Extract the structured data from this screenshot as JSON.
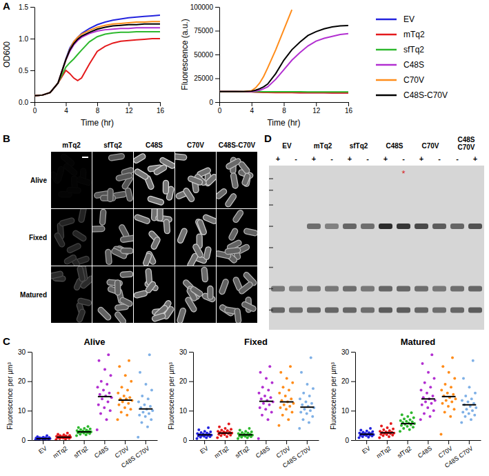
{
  "chart_data": [
    {
      "type": "line",
      "x_label": "Time (hr)",
      "y_label": "OD600",
      "x": [
        0,
        1,
        2,
        3,
        4,
        4.5,
        5,
        5.5,
        6,
        7,
        8,
        9,
        10,
        11,
        12,
        13,
        14,
        15,
        16
      ],
      "xlim": [
        0,
        16
      ],
      "xticks": [
        0,
        4,
        8,
        12,
        16
      ],
      "ylim": [
        0,
        1.5
      ],
      "yticks": [
        {
          "value": 0,
          "label": "0.0"
        },
        {
          "value": 0.5,
          "label": "0.5"
        },
        {
          "value": 1,
          "label": "1.0"
        },
        {
          "value": 1.5,
          "label": "1.5"
        }
      ],
      "series": [
        {
          "name": "EV",
          "color": "#2323de",
          "values": [
            0.1,
            0.11,
            0.15,
            0.3,
            0.68,
            0.85,
            0.95,
            1.02,
            1.08,
            1.16,
            1.22,
            1.26,
            1.29,
            1.31,
            1.33,
            1.34,
            1.35,
            1.36,
            1.37
          ]
        },
        {
          "name": "mTq2",
          "color": "#e41a1c",
          "values": [
            0.1,
            0.11,
            0.15,
            0.3,
            0.5,
            0.45,
            0.38,
            0.34,
            0.38,
            0.6,
            0.8,
            0.88,
            0.93,
            0.96,
            0.97,
            0.98,
            0.99,
            1.0,
            1.0
          ]
        },
        {
          "name": "sfTq2",
          "color": "#2db82d",
          "values": [
            0.1,
            0.11,
            0.15,
            0.3,
            0.55,
            0.62,
            0.68,
            0.75,
            0.82,
            0.95,
            1.03,
            1.07,
            1.09,
            1.1,
            1.1,
            1.11,
            1.11,
            1.11,
            1.11
          ]
        },
        {
          "name": "C48S",
          "color": "#b22fd1",
          "values": [
            0.1,
            0.11,
            0.15,
            0.3,
            0.66,
            0.8,
            0.9,
            0.97,
            1.02,
            1.08,
            1.12,
            1.14,
            1.15,
            1.16,
            1.16,
            1.17,
            1.17,
            1.17,
            1.17
          ]
        },
        {
          "name": "C70V",
          "color": "#ff8c1a",
          "values": [
            0.1,
            0.11,
            0.15,
            0.3,
            0.67,
            0.83,
            0.95,
            1.02,
            1.07,
            1.13,
            1.18,
            1.21,
            1.23,
            1.24,
            1.25,
            1.26,
            1.26,
            1.27,
            1.27
          ]
        },
        {
          "name": "C48S-C70V",
          "color": "#000000",
          "values": [
            0.1,
            0.11,
            0.15,
            0.3,
            0.67,
            0.82,
            0.92,
            0.99,
            1.04,
            1.1,
            1.15,
            1.18,
            1.2,
            1.21,
            1.22,
            1.22,
            1.23,
            1.23,
            1.23
          ]
        }
      ]
    },
    {
      "type": "line",
      "x_label": "Time (hr)",
      "y_label": "Fluorescence (a.u.)",
      "legend": "right",
      "x": [
        0,
        1,
        2,
        3,
        4,
        4.5,
        5,
        5.5,
        6,
        7,
        8,
        9,
        10,
        11,
        12,
        13,
        14,
        15,
        16
      ],
      "xlim": [
        0,
        16
      ],
      "xticks": [
        0,
        4,
        8,
        12,
        16
      ],
      "ylim": [
        0,
        100000
      ],
      "yticks": [
        0,
        25000,
        50000,
        75000,
        100000
      ],
      "series": [
        {
          "name": "EV",
          "color": "#2323de",
          "values": [
            11000,
            11000,
            11000,
            10900,
            10800,
            10700,
            10600,
            10500,
            10400,
            10300,
            10200,
            10100,
            10000,
            10000,
            9900,
            9900,
            9800,
            9800,
            9800
          ]
        },
        {
          "name": "mTq2",
          "color": "#e41a1c",
          "values": [
            11000,
            11000,
            11000,
            10900,
            10700,
            10500,
            10300,
            10200,
            10100,
            10000,
            9900,
            9900,
            9800,
            9800,
            9700,
            9700,
            9600,
            9600,
            9600
          ]
        },
        {
          "name": "sfTq2",
          "color": "#2db82d",
          "values": [
            11000,
            11000,
            11000,
            11000,
            11000,
            11000,
            11000,
            10900,
            10900,
            10900,
            10800,
            10800,
            10800,
            10700,
            10700,
            10700,
            10600,
            10600,
            10600
          ]
        },
        {
          "name": "C48S",
          "color": "#b22fd1",
          "values": [
            11000,
            11000,
            11000,
            11000,
            11000,
            11500,
            12500,
            14000,
            16000,
            24000,
            34000,
            44000,
            52000,
            59000,
            64000,
            67000,
            69000,
            71000,
            72000
          ]
        },
        {
          "name": "C70V",
          "color": "#ff8c1a",
          "values": [
            11000,
            11000,
            11000,
            11000,
            12000,
            15000,
            20000,
            27000,
            36000,
            55000,
            76000,
            97000,
            null,
            null,
            null,
            null,
            null,
            null,
            null
          ]
        },
        {
          "name": "C48S-C70V",
          "color": "#000000",
          "values": [
            11000,
            11000,
            11000,
            11000,
            11500,
            12500,
            14000,
            16000,
            19000,
            30000,
            44000,
            55000,
            63000,
            70000,
            74000,
            77000,
            79000,
            80000,
            80500
          ]
        }
      ]
    },
    {
      "type": "strip",
      "title": "Alive",
      "y_label": "Fluorescence per µm³",
      "categories": [
        "EV",
        "mTq2",
        "sfTq2",
        "C48S",
        "C70V",
        "C48S C70V"
      ],
      "colors": [
        "#2323de",
        "#e41a1c",
        "#2db82d",
        "#b22fd1",
        "#ff8c1a",
        "#7fb0e6"
      ],
      "ylim": [
        0,
        30
      ],
      "yticks": [
        0,
        10,
        20,
        30
      ],
      "values": [
        [
          0.1,
          0.2,
          0.3,
          0.3,
          0.4,
          0.4,
          0.5,
          0.5,
          0.5,
          0.6,
          0.6,
          0.6,
          0.7,
          0.7,
          0.8,
          0.8,
          0.9,
          1.0,
          1.2,
          1.5
        ],
        [
          0.2,
          0.4,
          0.5,
          0.6,
          0.7,
          0.8,
          0.8,
          0.9,
          1.0,
          1.0,
          1.1,
          1.1,
          1.2,
          1.3,
          1.4,
          1.5,
          1.6,
          1.8,
          2.0,
          2.4
        ],
        [
          1.5,
          1.8,
          2.0,
          2.2,
          2.4,
          2.5,
          2.6,
          2.7,
          2.8,
          2.8,
          2.9,
          3.0,
          3.1,
          3.2,
          3.4,
          3.6,
          3.8,
          4.0,
          4.3,
          4.6
        ],
        [
          3.5,
          7,
          9,
          10,
          11,
          12,
          13,
          14,
          14.5,
          15,
          15.5,
          16,
          17,
          18,
          19,
          20,
          22,
          24,
          27,
          29
        ],
        [
          7,
          8.5,
          9.5,
          10.5,
          11,
          12,
          12.5,
          13,
          13.5,
          14,
          14,
          14.5,
          15,
          16,
          17,
          18,
          20,
          22,
          25,
          27
        ],
        [
          1,
          4.5,
          6,
          7,
          8,
          8.5,
          9,
          9.5,
          10,
          10.5,
          11,
          11.5,
          12,
          13,
          14,
          15,
          17,
          19,
          23,
          29
        ]
      ],
      "means": [
        0.5,
        1.0,
        2.8,
        14.8,
        13.6,
        10.6
      ]
    },
    {
      "type": "strip",
      "title": "Fixed",
      "y_label": "Fluorescence per µm³",
      "categories": [
        "EV",
        "mTq2",
        "sfTq2",
        "C48S",
        "C70V",
        "C48S C70V"
      ],
      "colors": [
        "#2323de",
        "#e41a1c",
        "#2db82d",
        "#b22fd1",
        "#ff8c1a",
        "#7fb0e6"
      ],
      "ylim": [
        0,
        30
      ],
      "yticks": [
        0,
        10,
        20,
        30
      ],
      "values": [
        [
          0.5,
          0.8,
          1.0,
          1.2,
          1.3,
          1.4,
          1.5,
          1.6,
          1.7,
          1.8,
          1.9,
          2.0,
          2.1,
          2.2,
          2.4,
          2.6,
          2.8,
          3.0,
          3.5,
          4.2
        ],
        [
          0.8,
          1.2,
          1.5,
          1.7,
          1.9,
          2.0,
          2.2,
          2.3,
          2.4,
          2.5,
          2.6,
          2.7,
          2.8,
          3.0,
          3.2,
          3.4,
          3.7,
          4.0,
          4.5,
          5.5
        ],
        [
          0.5,
          0.8,
          1.0,
          1.2,
          1.3,
          1.4,
          1.5,
          1.6,
          1.7,
          1.8,
          1.9,
          2.0,
          2.1,
          2.2,
          2.4,
          2.6,
          2.8,
          3.0,
          3.4,
          4.0
        ],
        [
          0.5,
          7,
          8.5,
          9.5,
          10.5,
          11,
          12,
          12.5,
          13,
          13.5,
          14,
          14.5,
          15,
          16,
          17,
          18,
          19.5,
          21,
          23,
          25
        ],
        [
          5,
          7,
          8.5,
          9.5,
          10.5,
          11,
          11.5,
          12,
          12.5,
          13,
          13.5,
          14,
          15,
          16,
          17,
          18,
          19.5,
          21,
          23,
          25
        ],
        [
          4,
          6,
          7,
          8,
          9,
          9.5,
          10,
          10.5,
          11,
          11.5,
          12,
          12.5,
          13,
          14,
          15,
          16,
          17.5,
          19,
          23,
          28
        ]
      ],
      "means": [
        1.8,
        2.4,
        1.8,
        13.2,
        13.0,
        11.2
      ]
    },
    {
      "type": "strip",
      "title": "Matured",
      "y_label": "Fluorescence per µm³",
      "categories": [
        "EV",
        "mTq2",
        "sfTq2",
        "C48S",
        "C70V",
        "C48S C70V"
      ],
      "colors": [
        "#2323de",
        "#e41a1c",
        "#2db82d",
        "#b22fd1",
        "#ff8c1a",
        "#7fb0e6"
      ],
      "ylim": [
        0,
        30
      ],
      "yticks": [
        0,
        10,
        20,
        30
      ],
      "values": [
        [
          0.8,
          1.0,
          1.2,
          1.4,
          1.5,
          1.6,
          1.7,
          1.8,
          1.9,
          2.0,
          2.1,
          2.2,
          2.3,
          2.4,
          2.5,
          2.7,
          2.9,
          3.1,
          3.4,
          4.0
        ],
        [
          0.8,
          1.2,
          1.5,
          1.7,
          1.9,
          2.0,
          2.2,
          2.3,
          2.4,
          2.5,
          2.6,
          2.7,
          2.8,
          3.0,
          3.2,
          3.5,
          3.8,
          4.2,
          4.8,
          5.6
        ],
        [
          3,
          3.6,
          4.0,
          4.4,
          4.7,
          5.0,
          5.2,
          5.4,
          5.6,
          5.8,
          6.0,
          6.2,
          6.4,
          6.6,
          6.9,
          7.2,
          7.6,
          8.0,
          8.6,
          9.3
        ],
        [
          7,
          8,
          9,
          10,
          11,
          12,
          12.5,
          13,
          13.5,
          14,
          14.5,
          15,
          16,
          17,
          18,
          19.5,
          21,
          23,
          26,
          29
        ],
        [
          2,
          8,
          9.5,
          10.5,
          11.5,
          12.5,
          13,
          13.5,
          14,
          14.5,
          15,
          15.5,
          16,
          17,
          18,
          19,
          21,
          23,
          25,
          28
        ],
        [
          6,
          7,
          8,
          8.5,
          9,
          9.5,
          10,
          10.5,
          11,
          11.5,
          12,
          12.5,
          13,
          13.5,
          14,
          15,
          16,
          18,
          21,
          27
        ]
      ],
      "means": [
        2.0,
        2.5,
        5.6,
        14.0,
        14.8,
        12.0
      ]
    }
  ],
  "panel_labels": [
    "A",
    "B",
    "C",
    "D"
  ],
  "microscopy": {
    "columns": [
      "mTq2",
      "sfTq2",
      "C48S",
      "C70V",
      "C48S-C70V"
    ],
    "rows": [
      "Alive",
      "Fixed",
      "Matured"
    ],
    "brightness": [
      [
        0.03,
        0.6,
        0.85,
        0.8,
        0.75
      ],
      [
        0.25,
        0.65,
        0.8,
        0.8,
        0.7
      ],
      [
        0.3,
        0.7,
        0.8,
        0.75,
        0.7
      ]
    ]
  },
  "gel": {
    "groups": [
      {
        "label": [
          "EV"
        ],
        "signs": [
          "+",
          "-"
        ]
      },
      {
        "label": [
          "mTq2"
        ],
        "signs": [
          "+",
          "-"
        ]
      },
      {
        "label": [
          "sfTq2"
        ],
        "signs": [
          "+",
          "-"
        ]
      },
      {
        "label": [
          "C48S"
        ],
        "signs": [
          "+",
          "-"
        ]
      },
      {
        "label": [
          "C70V"
        ],
        "signs": [
          "+",
          "-"
        ]
      },
      {
        "label": [
          "C48S",
          "C70V"
        ],
        "signs": [
          "-",
          "+"
        ]
      }
    ],
    "marked": [
      false,
      false,
      false,
      false,
      false,
      false,
      false,
      true,
      false,
      false,
      false,
      false
    ],
    "mark_text": "*",
    "target_band": [
      0,
      0,
      0.55,
      0.45,
      0.6,
      0.55,
      0.9,
      0.85,
      0.75,
      0.65,
      0.6,
      0.7
    ],
    "lower_bands": [
      [
        0.5,
        0.45,
        0.5,
        0.5,
        0.55,
        0.5,
        0.6,
        0.6,
        0.55,
        0.5,
        0.55,
        0.6
      ],
      [
        0.6,
        0.55,
        0.6,
        0.6,
        0.6,
        0.55,
        0.65,
        0.65,
        0.6,
        0.55,
        0.6,
        0.65
      ]
    ]
  }
}
